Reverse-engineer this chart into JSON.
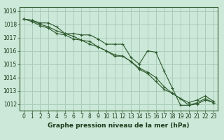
{
  "title": "Graphe pression niveau de la mer (hPa)",
  "background_color": "#cce8d8",
  "grid_color": "#aaccbb",
  "line_color": "#2d5a2d",
  "text_color": "#1a3a1a",
  "xlim": [
    -0.5,
    23.5
  ],
  "ylim": [
    1011.5,
    1019.3
  ],
  "yticks": [
    1012,
    1013,
    1014,
    1015,
    1016,
    1017,
    1018,
    1019
  ],
  "xticks": [
    0,
    1,
    2,
    3,
    4,
    5,
    6,
    7,
    8,
    9,
    10,
    11,
    12,
    13,
    14,
    15,
    16,
    17,
    18,
    19,
    20,
    21,
    22,
    23
  ],
  "series": [
    [
      1018.4,
      1018.3,
      1018.1,
      1018.1,
      1017.8,
      1017.3,
      1017.3,
      1017.2,
      1017.2,
      1016.9,
      1016.5,
      1016.5,
      1016.5,
      1015.5,
      1015.0,
      1016.0,
      1015.9,
      1014.5,
      1013.2,
      1011.9,
      1011.9,
      1012.1,
      1012.4,
      1012.1
    ],
    [
      1018.4,
      1018.3,
      1018.0,
      1017.8,
      1017.5,
      1017.3,
      1017.1,
      1016.8,
      1016.5,
      1016.3,
      1016.0,
      1015.7,
      1015.6,
      1015.2,
      1014.7,
      1014.4,
      1014.0,
      1013.3,
      1012.8,
      1012.4,
      1011.9,
      1012.0,
      1012.3,
      1012.1
    ],
    [
      1018.4,
      1018.2,
      1017.9,
      1017.7,
      1017.3,
      1017.2,
      1016.9,
      1016.8,
      1016.7,
      1016.3,
      1016.0,
      1015.6,
      1015.6,
      1015.2,
      1014.6,
      1014.3,
      1013.7,
      1013.1,
      1012.8,
      1012.4,
      1012.1,
      1012.3,
      1012.6,
      1012.2
    ]
  ]
}
